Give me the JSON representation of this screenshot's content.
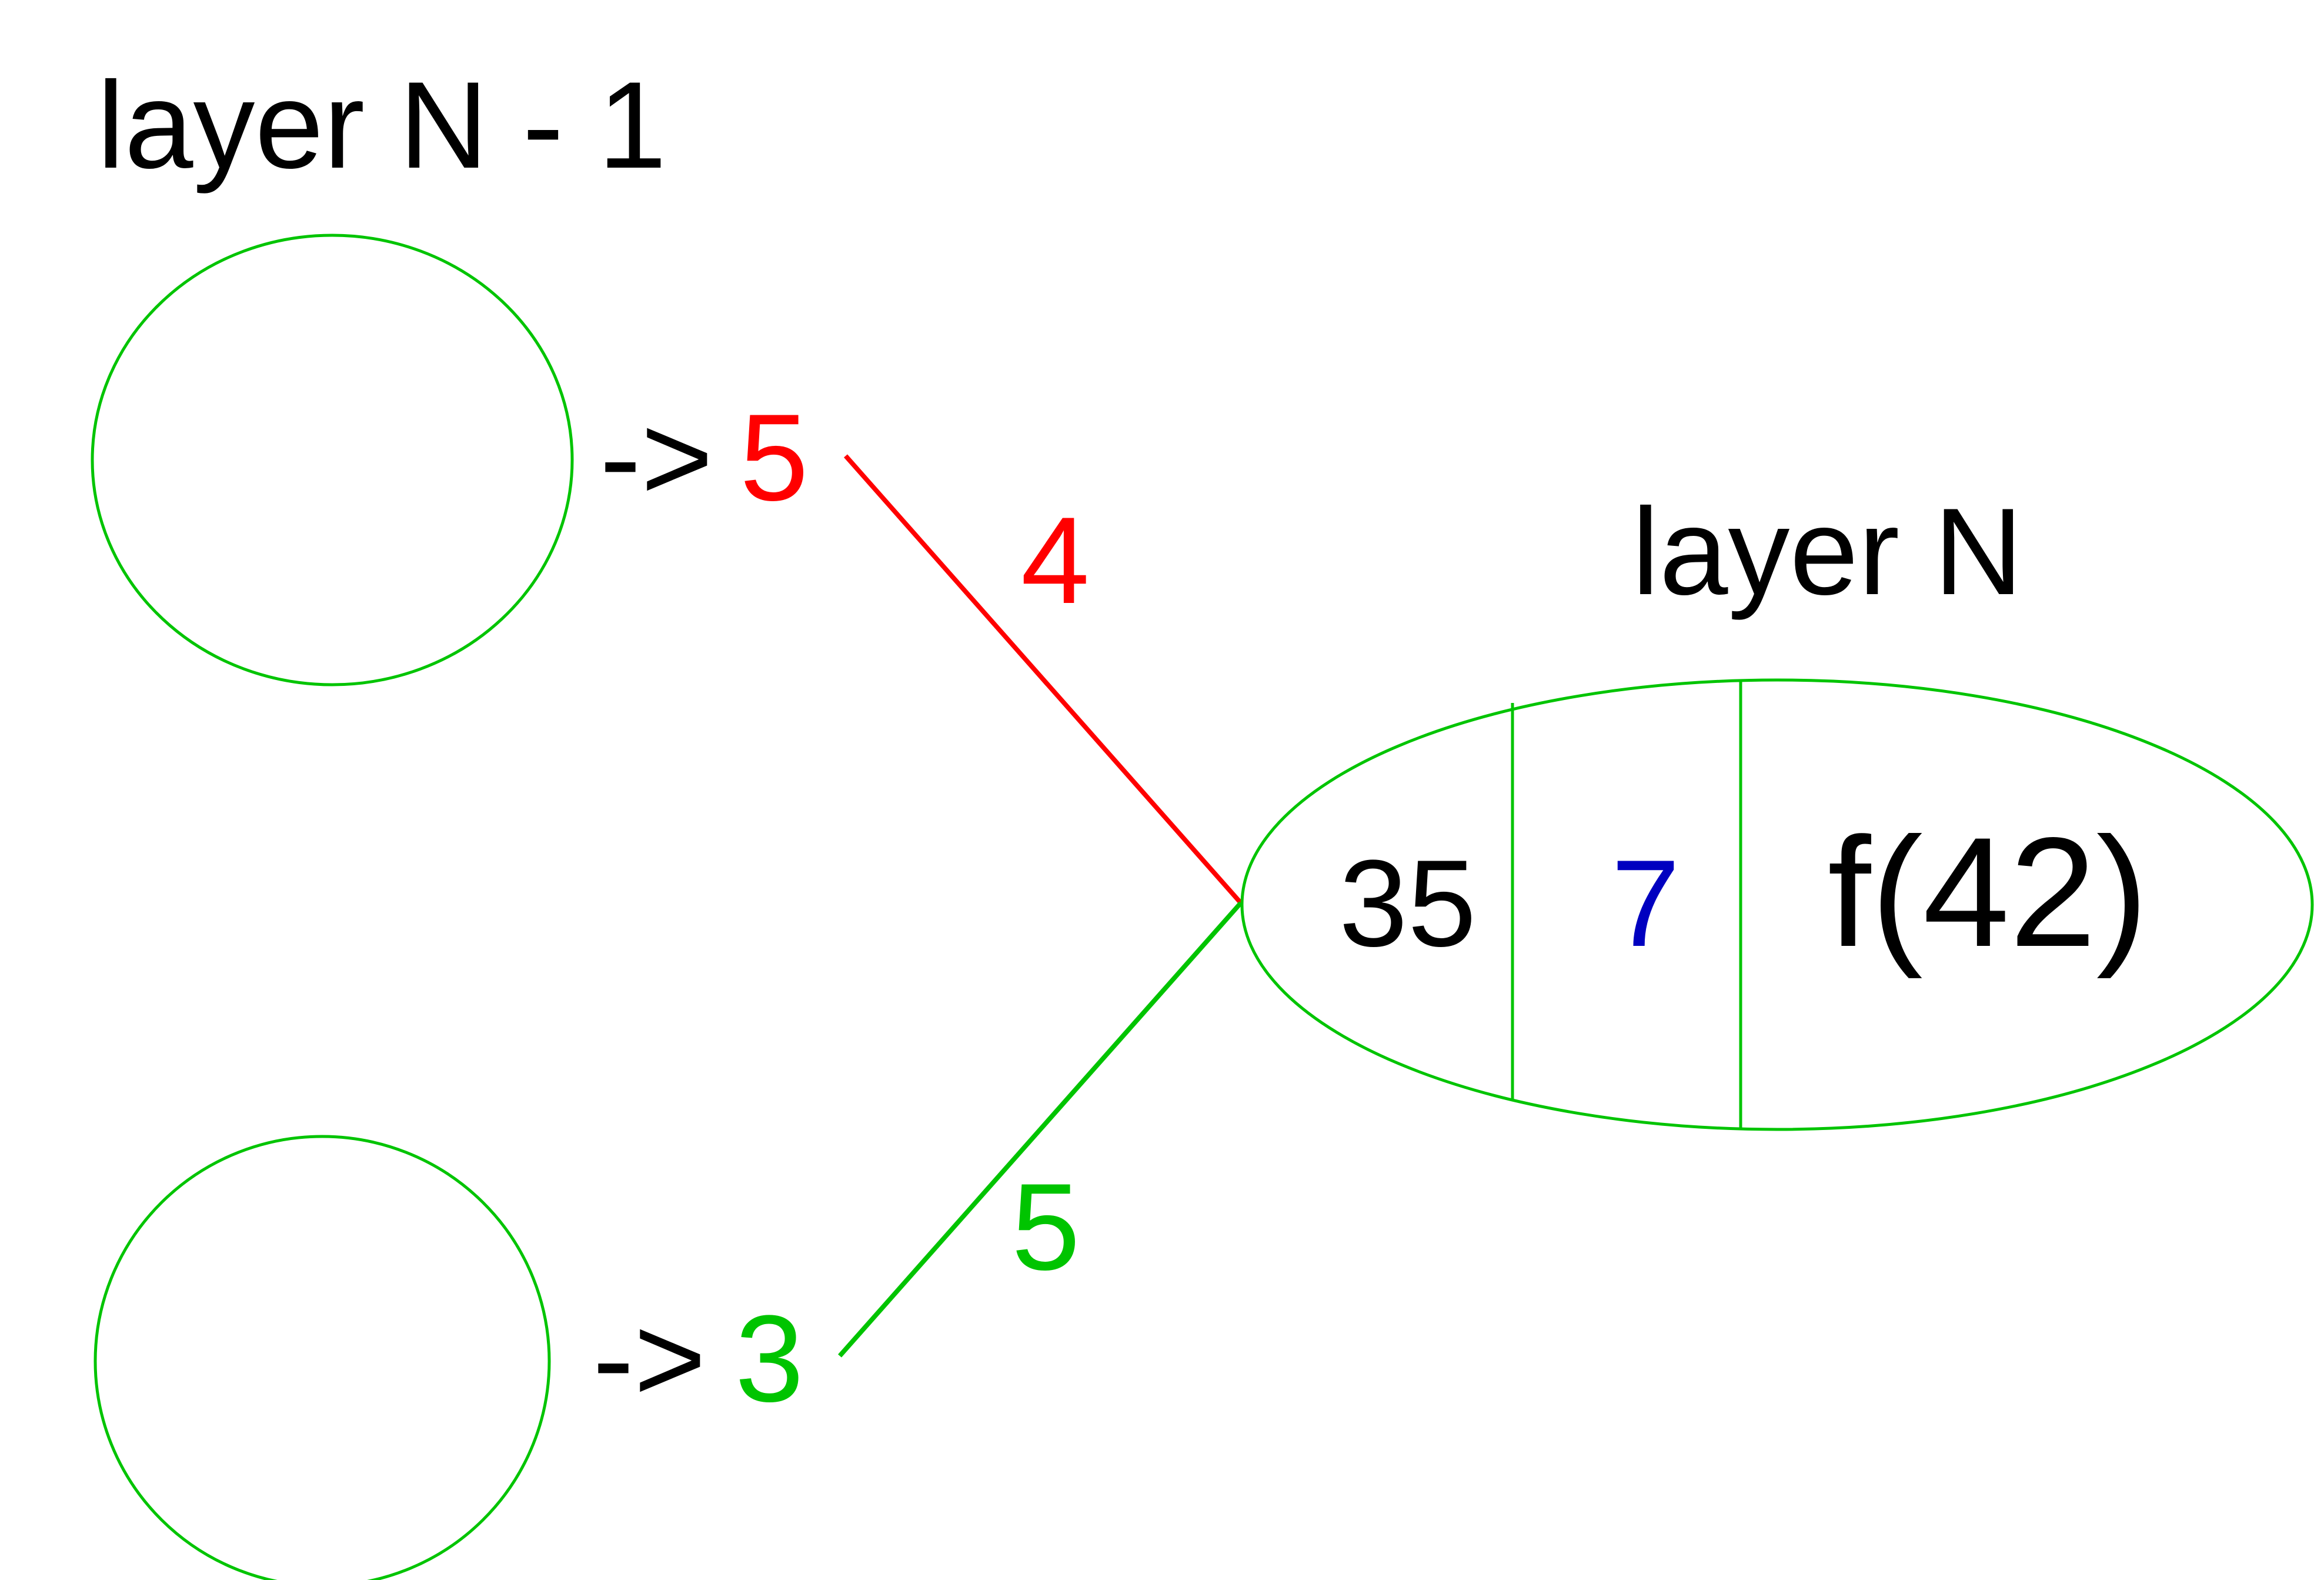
{
  "labels": {
    "prev_layer_title": "layer N - 1",
    "curr_layer_title": "layer N"
  },
  "inputs": [
    {
      "arrow": "->",
      "value": "5",
      "weight": "4"
    },
    {
      "arrow": "->",
      "value": "3",
      "weight": "5"
    }
  ],
  "target_neuron": {
    "weighted_input": "35",
    "bias": "7",
    "activation": "f(42)"
  },
  "colors": {
    "neuron_outline": "#00c400",
    "edge_top": "#ff0000",
    "edge_bottom": "#00c400",
    "input_value_top": "#ff0000",
    "input_value_bottom": "#00c400",
    "weight_top": "#ff0000",
    "weight_bottom": "#00c400",
    "bias": "#0000c0",
    "text": "#000000"
  }
}
